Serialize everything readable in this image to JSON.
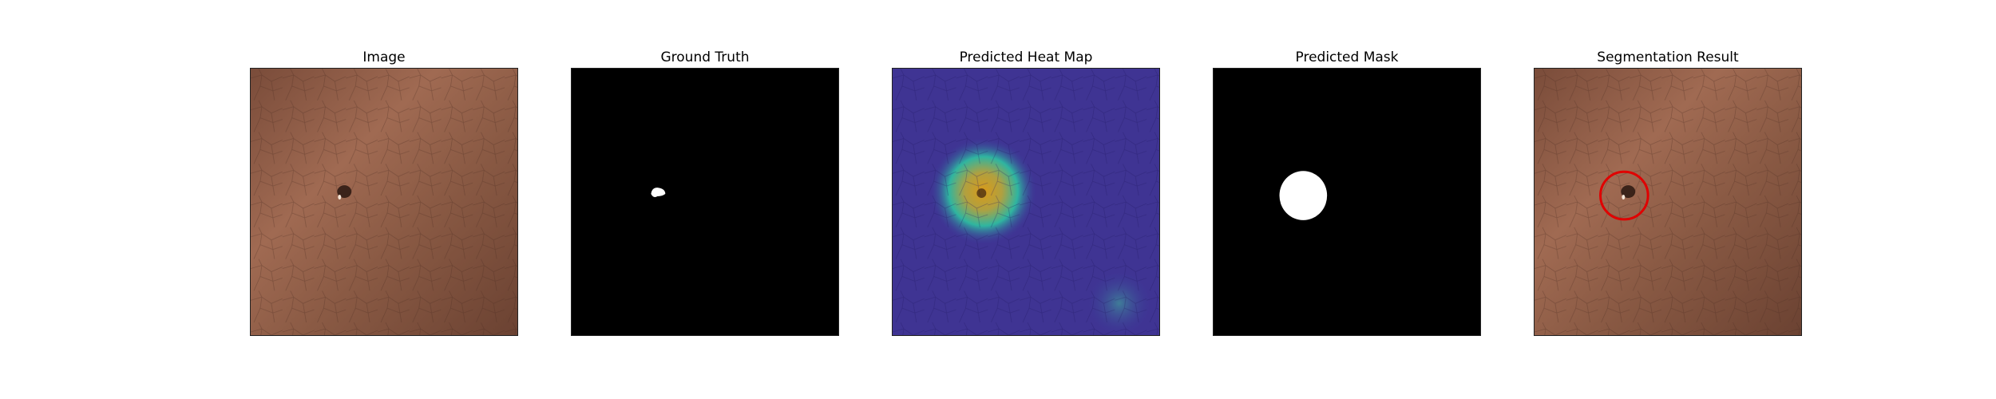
{
  "figure": {
    "panels": [
      {
        "title": "Image"
      },
      {
        "title": "Ground Truth"
      },
      {
        "title": "Predicted Heat Map"
      },
      {
        "title": "Predicted Mask"
      },
      {
        "title": "Segmentation Result"
      }
    ]
  },
  "colors": {
    "leather_dark": "#6b4232",
    "leather_mid": "#8a5a44",
    "leather_light": "#a06a52",
    "mask_background": "#000000",
    "mask_foreground": "#ffffff",
    "heatmap_low": "#3a2a8a",
    "heatmap_mid": "#2fb5a0",
    "heatmap_high": "#e0a020",
    "overlay_circle": "#e00000"
  }
}
